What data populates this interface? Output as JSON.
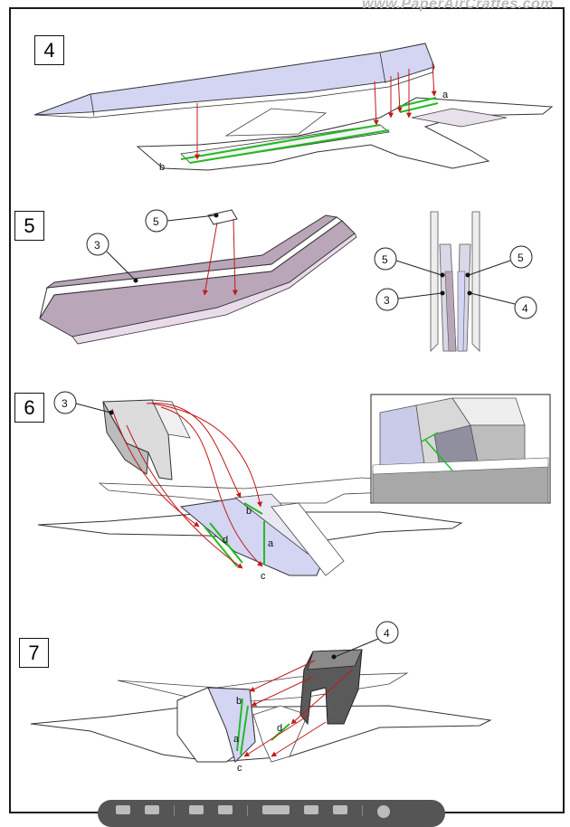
{
  "watermark": "www.PaperAirCraftes.com",
  "steps": {
    "s4": {
      "number": "4",
      "labels": {
        "a": "a",
        "b": "b"
      }
    },
    "s5": {
      "number": "5",
      "labels": {
        "c5a": "5",
        "c3a": "3",
        "c5b": "5",
        "c5c": "5",
        "c3b": "3",
        "c4": "4"
      }
    },
    "s6": {
      "number": "6",
      "labels": {
        "c3": "3",
        "a": "a",
        "b": "b",
        "c": "c",
        "d": "d"
      }
    },
    "s7": {
      "number": "7",
      "labels": {
        "c4": "4",
        "a": "a",
        "b": "b",
        "c": "c",
        "d": "d"
      }
    }
  },
  "colors": {
    "arrow": "#c41818",
    "guide": "#22bb22",
    "part_blue": "#d3d5f3",
    "part_mauve": "#b9a6b9",
    "part_pink": "#eadbeb",
    "part_grey": "#777777"
  },
  "toolbar": {
    "icons": [
      "first-page-icon",
      "previous-page-icon",
      "home-icon",
      "next-page-icon",
      "fit-page-icon",
      "zoom-out-icon",
      "zoom-in-icon",
      "search-icon"
    ]
  }
}
